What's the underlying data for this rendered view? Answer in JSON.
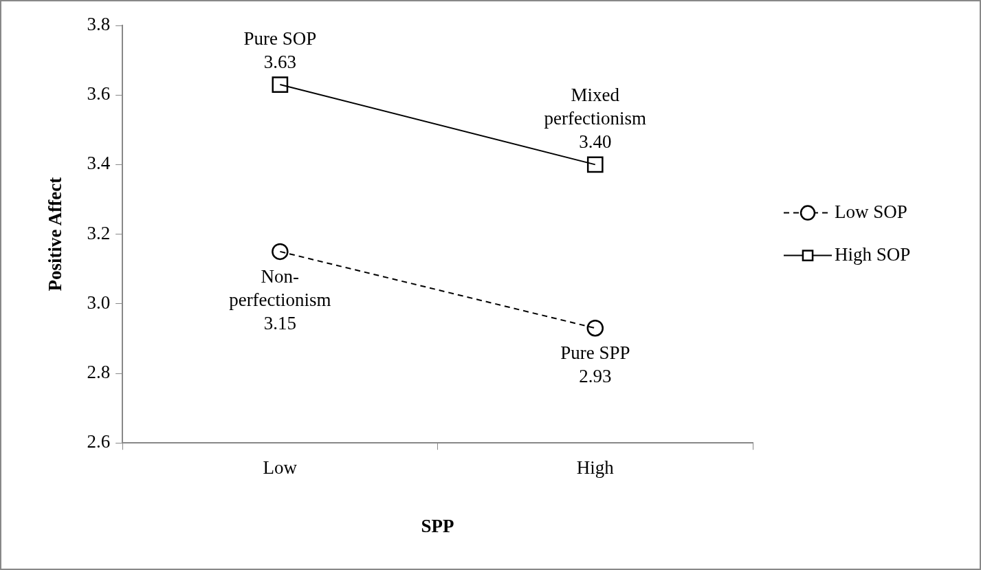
{
  "chart_data": {
    "type": "line",
    "xlabel": "SPP",
    "ylabel": "Positive Affect",
    "categories": [
      "Low",
      "High"
    ],
    "series": [
      {
        "name": "Low SOP",
        "color": "#000000",
        "values": [
          3.15,
          2.93
        ],
        "marker": "circle",
        "line_style": "dashed"
      },
      {
        "name": "High SOP",
        "color": "#000000",
        "values": [
          3.63,
          3.4
        ],
        "marker": "square",
        "line_style": "solid"
      }
    ],
    "ylim": [
      2.6,
      3.8
    ],
    "yticks": [
      2.6,
      2.8,
      {
        "value": 3,
        "label": "3.0"
      },
      3.2,
      3.4,
      3.6,
      3.8
    ],
    "annotations": [
      {
        "text": "Pure SOP\n3.63",
        "x": "Low",
        "y": 3.63
      },
      {
        "text": "Mixed\nperfectionism\n3.40",
        "x": "High",
        "y": 3.4
      },
      {
        "text": "Non-\nperfectionism\n3.15",
        "x": "Low",
        "y": 3.15
      },
      {
        "text": "Pure SPP\n2.93",
        "x": "High",
        "y": 2.93
      }
    ],
    "grid": false,
    "legend": "right"
  }
}
